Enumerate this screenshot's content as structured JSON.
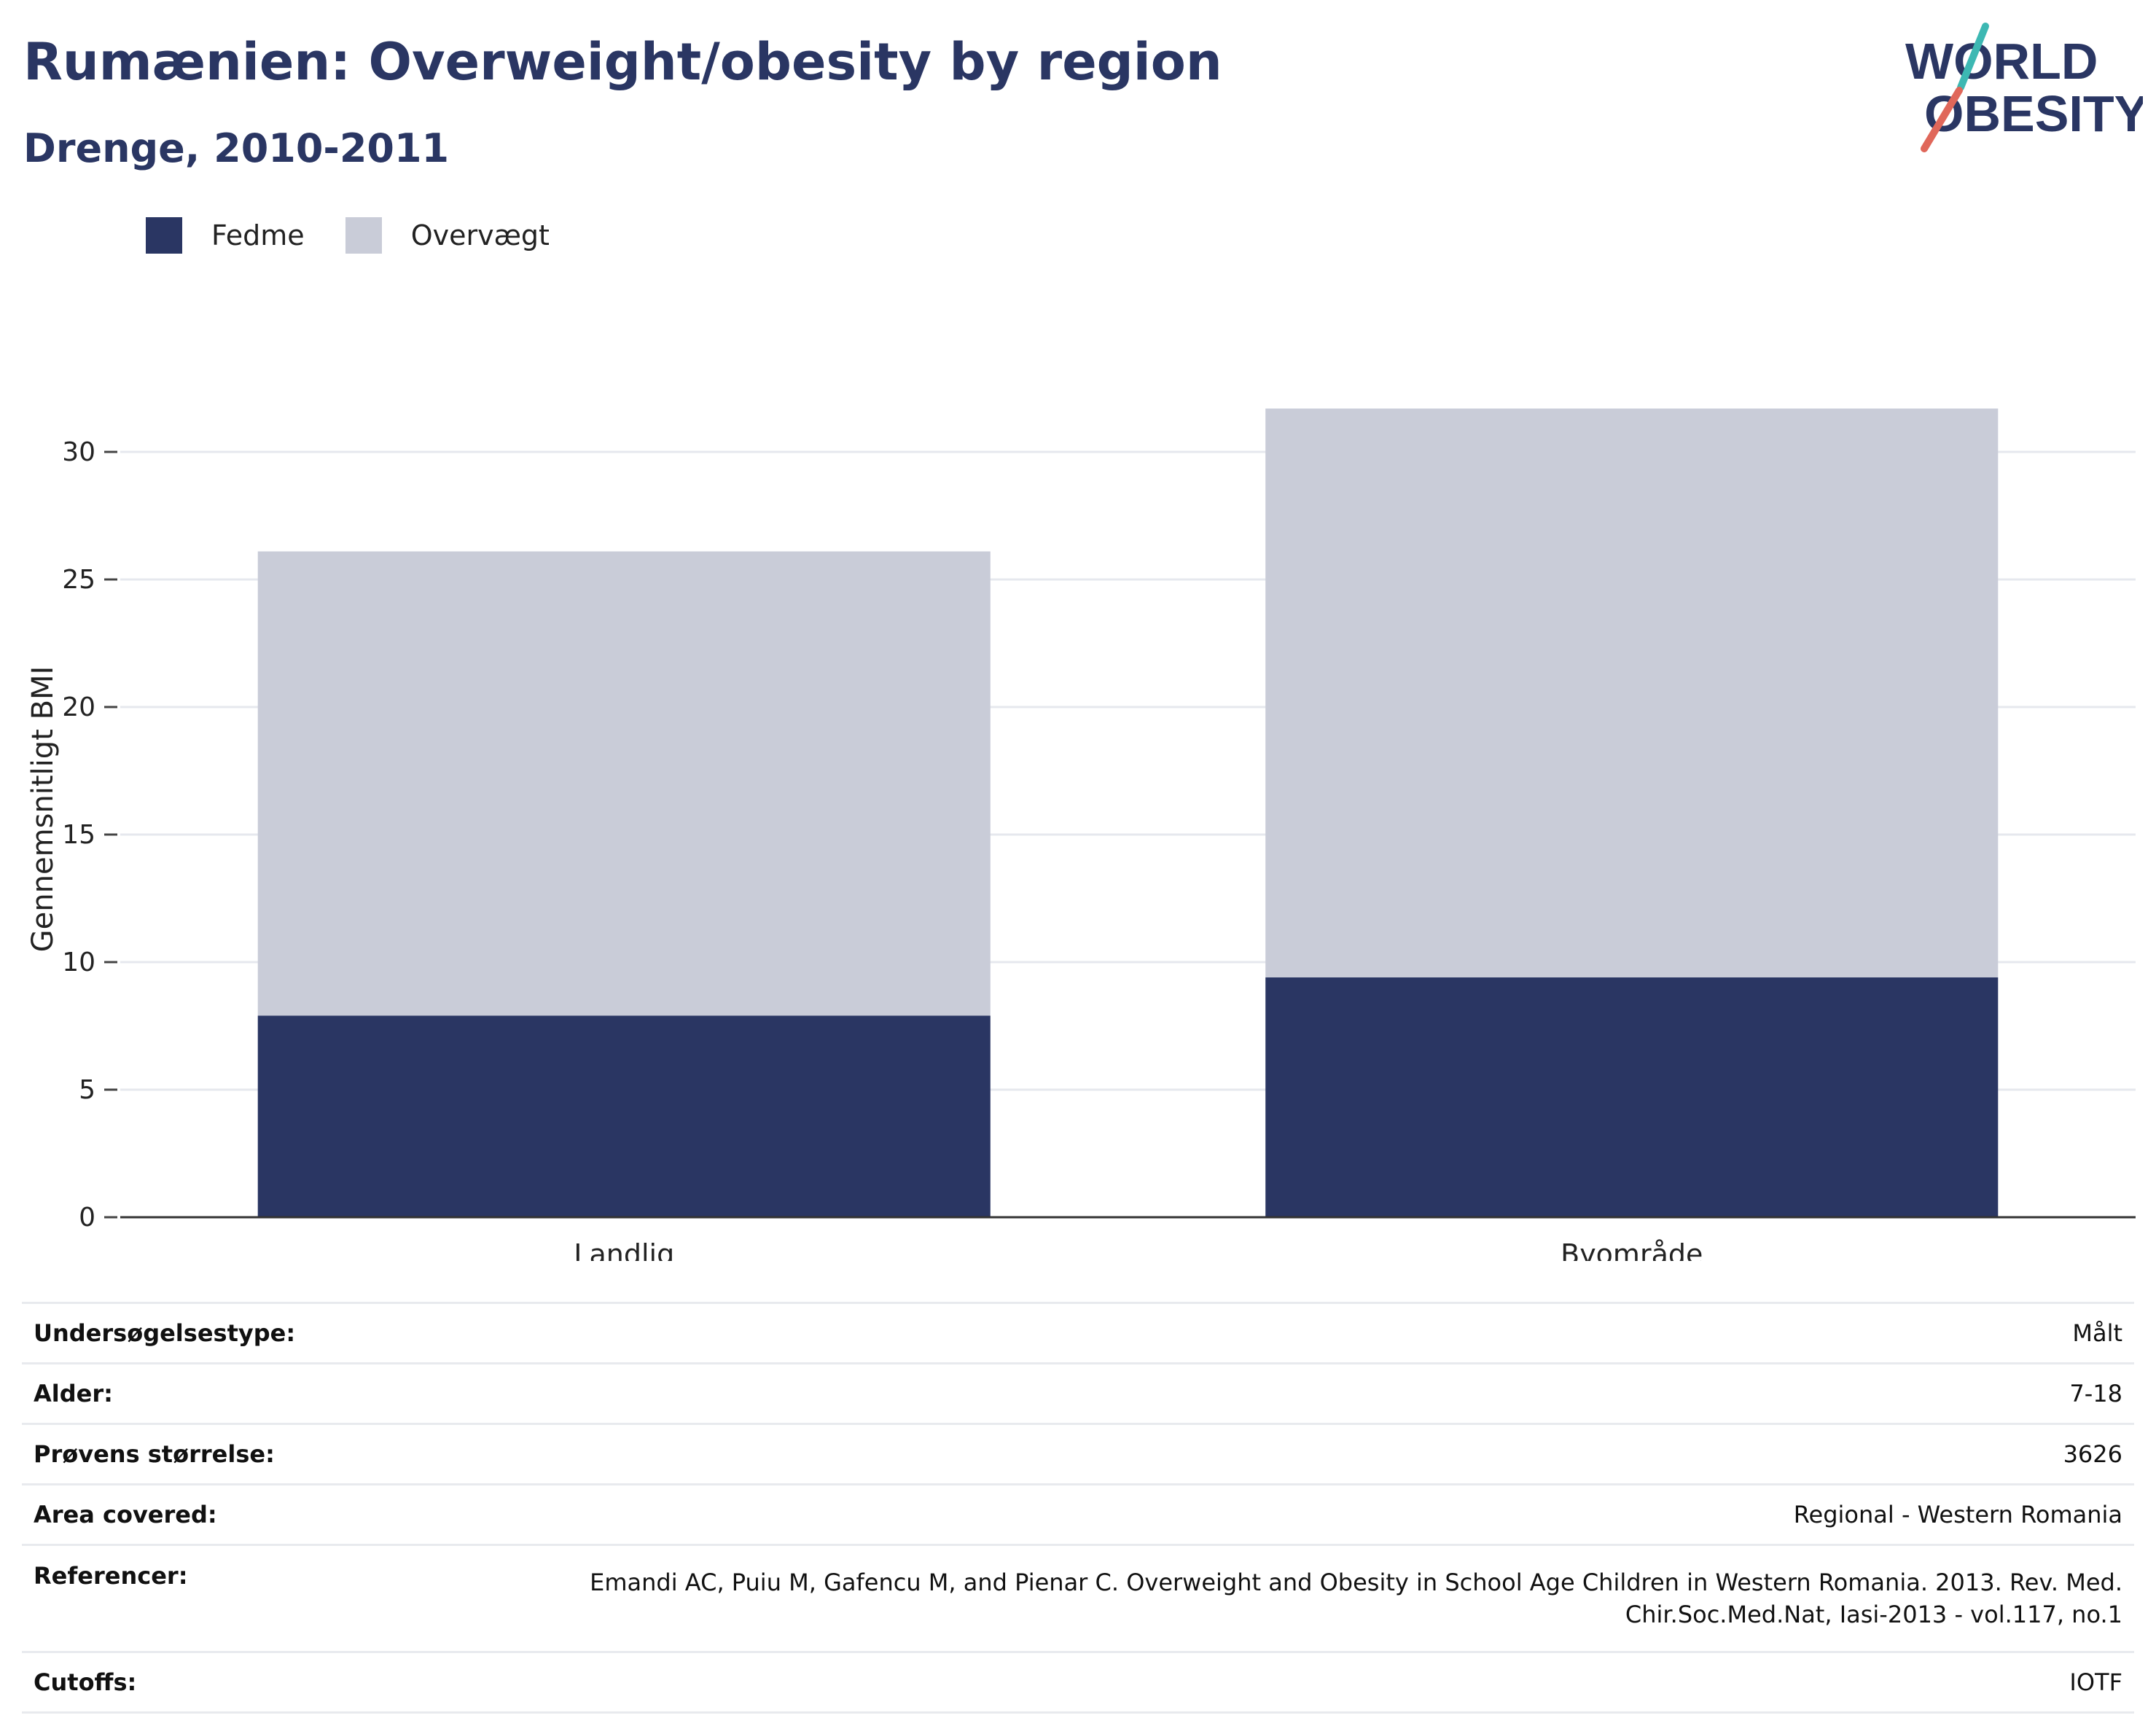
{
  "header": {
    "title": "Rumænien: Overweight/obesity by region",
    "subtitle": "Drenge, 2010-2011"
  },
  "logo": {
    "line1": "WORLD",
    "line2": "OBESITY"
  },
  "legend": {
    "items": [
      {
        "label": "Fedme",
        "color": "#2a3663"
      },
      {
        "label": "Overvægt",
        "color": "#c9ccd8"
      }
    ]
  },
  "chart_data": {
    "type": "bar",
    "stacked": true,
    "categories": [
      "Landlig",
      "Byområde"
    ],
    "series": [
      {
        "name": "Fedme",
        "values": [
          7.9,
          9.4
        ],
        "color": "#2a3663"
      },
      {
        "name": "Overvægt",
        "values": [
          18.2,
          22.3
        ],
        "color": "#c9ccd8"
      }
    ],
    "title": "Rumænien: Overweight/obesity by region",
    "subtitle": "Drenge, 2010-2011",
    "xlabel": "",
    "ylabel": "Gennemsnitligt BMI",
    "ylim": [
      0,
      32
    ],
    "yticks": [
      0,
      5,
      10,
      15,
      20,
      25,
      30
    ],
    "grid": true,
    "legend_position": "top-left"
  },
  "meta": [
    {
      "label": "Undersøgelsestype:",
      "value": "Målt"
    },
    {
      "label": "Alder:",
      "value": "7-18"
    },
    {
      "label": "Prøvens størrelse:",
      "value": "3626"
    },
    {
      "label": "Area covered:",
      "value": "Regional - Western Romania"
    },
    {
      "label": "Referencer:",
      "value_line1": "Emandi AC, Puiu M, Gafencu M, and Pienar C. Overweight and Obesity in School Age Children in Western Romania. 2013. Rev. Med.",
      "value_line2": "Chir.Soc.Med.Nat, Iasi-2013 - vol.117, no.1"
    },
    {
      "label": "Cutoffs:",
      "value": "IOTF"
    }
  ]
}
